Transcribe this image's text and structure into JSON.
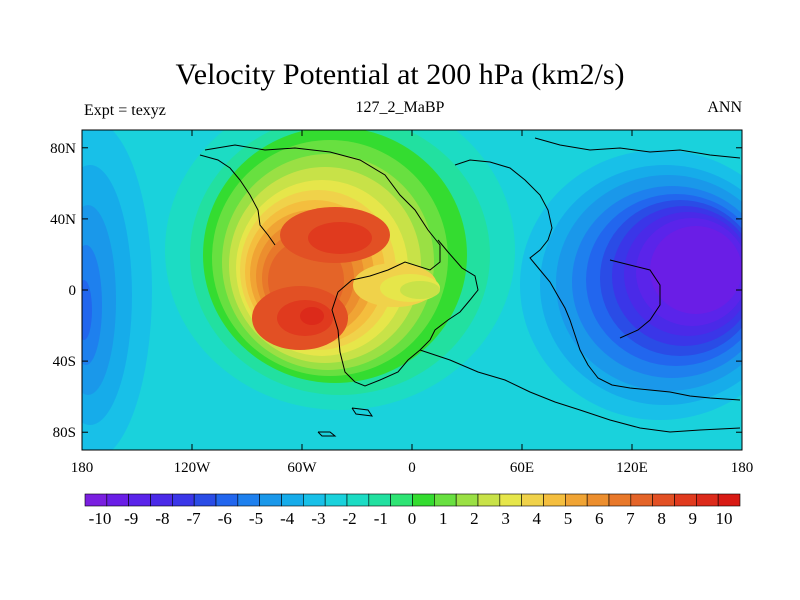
{
  "title": "Velocity Potential at 200 hPa (km2/s)",
  "subtitle": "127_2_MaBP",
  "left_string": "Expt = texyz",
  "right_string": "ANN",
  "map": {
    "lon_ticks": [
      "180",
      "120W",
      "60W",
      "0",
      "60E",
      "120E",
      "180"
    ],
    "lat_ticks": [
      "80N",
      "40N",
      "0",
      "40S",
      "80S"
    ],
    "lon_range": [
      -180,
      180
    ],
    "lat_range": [
      -90,
      90
    ]
  },
  "colorbar": {
    "labels": [
      "-10",
      "-9",
      "-8",
      "-7",
      "-6",
      "-5",
      "-4",
      "-3",
      "-2",
      "-1",
      "0",
      "1",
      "2",
      "3",
      "4",
      "5",
      "6",
      "7",
      "8",
      "9",
      "10"
    ],
    "colors": [
      "#7a1fe0",
      "#6a1ee6",
      "#5a24ea",
      "#4a2ae8",
      "#3a36e8",
      "#2a4ce6",
      "#2266ee",
      "#1e80ee",
      "#1a98ea",
      "#16acea",
      "#18c0e8",
      "#1ad2dc",
      "#1cdcc4",
      "#22e0a0",
      "#2ee474",
      "#34dc30",
      "#68e040",
      "#9ae044",
      "#c8e248",
      "#e6e64a",
      "#f0d24a",
      "#f4be3e",
      "#f0a434",
      "#ec8e2e",
      "#e8782a",
      "#e46428",
      "#e25024",
      "#e03a1e",
      "#dc2a1a",
      "#d81a14"
    ]
  },
  "colors": {
    "background": "#ffffff",
    "frame": "#000000"
  }
}
